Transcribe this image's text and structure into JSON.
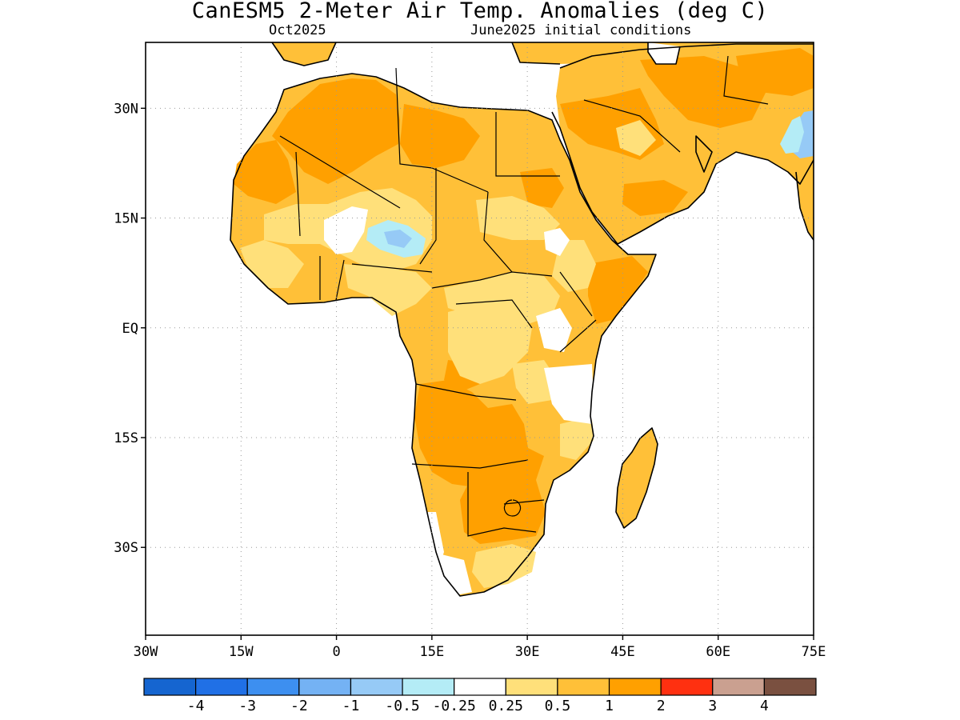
{
  "header": {
    "title": "CanESM5 2-Meter Air Temp. Anomalies (deg C)",
    "subtitle_left": "Oct2025",
    "subtitle_right": "June2025 initial conditions"
  },
  "map": {
    "lon_range": [
      -30,
      75
    ],
    "lat_range": [
      -42,
      39
    ],
    "x_ticks": [
      {
        "value": -30,
        "label": "30W"
      },
      {
        "value": -15,
        "label": "15W"
      },
      {
        "value": 0,
        "label": "0"
      },
      {
        "value": 15,
        "label": "15E"
      },
      {
        "value": 30,
        "label": "30E"
      },
      {
        "value": 45,
        "label": "45E"
      },
      {
        "value": 60,
        "label": "60E"
      },
      {
        "value": 75,
        "label": "75E"
      }
    ],
    "y_ticks": [
      {
        "value": 30,
        "label": "30N"
      },
      {
        "value": 15,
        "label": "15N"
      },
      {
        "value": 0,
        "label": "EQ"
      },
      {
        "value": -15,
        "label": "15S"
      },
      {
        "value": -30,
        "label": "30S"
      }
    ],
    "grid": "dotted",
    "colors": {
      "land_outline": "#000000",
      "ocean": "#ffffff"
    }
  },
  "colorbar": {
    "bins": [
      {
        "color": "#1565d0",
        "label": "-4"
      },
      {
        "color": "#2070e6",
        "label": "-3"
      },
      {
        "color": "#3d8ff0",
        "label": "-2"
      },
      {
        "color": "#74b2f4",
        "label": "-1"
      },
      {
        "color": "#96caf6",
        "label": "-0.5"
      },
      {
        "color": "#b4ecf6",
        "label": "-0.25"
      },
      {
        "color": "#ffffff",
        "label": "0.25"
      },
      {
        "color": "#ffe07a",
        "label": "0.5"
      },
      {
        "color": "#ffc038",
        "label": "1"
      },
      {
        "color": "#ffa000",
        "label": "2"
      },
      {
        "color": "#ff3010",
        "label": "3"
      },
      {
        "color": "#caa090",
        "label": "4"
      },
      {
        "color": "#7a5040",
        "label": ""
      }
    ]
  }
}
